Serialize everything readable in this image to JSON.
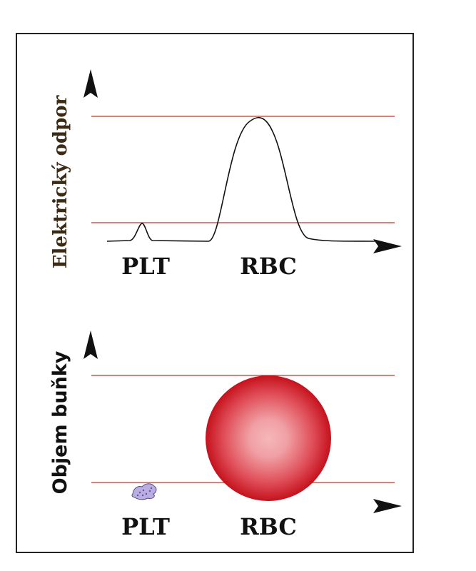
{
  "top_panel": {
    "axis_title": "Elektrický odpor",
    "labels": {
      "plt": "PLT",
      "rbc": "RBC"
    }
  },
  "bottom_panel": {
    "axis_title": "Objem buňky",
    "labels": {
      "plt": "PLT",
      "rbc": "RBC"
    }
  },
  "colors": {
    "frame": "#222222",
    "reference_line": "#c0392b",
    "curve": "#111111",
    "top_axis_title": "#3b2a14",
    "bottom_axis_title": "#111111",
    "rbc_center": "#f4a6a8",
    "rbc_edge": "#c8141f",
    "plt_fill": "#b9aee0",
    "plt_dots": "#6b4fb0"
  }
}
